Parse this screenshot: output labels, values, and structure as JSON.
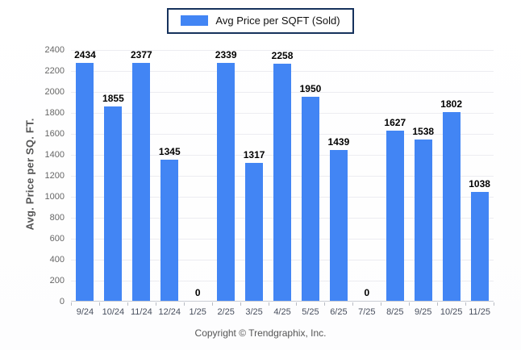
{
  "legend": {
    "label": "Avg Price per SQFT (Sold)"
  },
  "footer": {
    "text": "Copyright © Trendgraphix, Inc."
  },
  "chart_data": {
    "type": "bar",
    "title": "",
    "series_name": "Avg Price per SQFT (Sold)",
    "categories": [
      "9/24",
      "10/24",
      "11/24",
      "12/24",
      "1/25",
      "2/25",
      "3/25",
      "4/25",
      "5/25",
      "6/25",
      "7/25",
      "8/25",
      "9/25",
      "10/25",
      "11/25"
    ],
    "values": [
      2434,
      1855,
      2377,
      1345,
      0,
      2339,
      1317,
      2258,
      1950,
      1439,
      0,
      1627,
      1538,
      1802,
      1038
    ],
    "xlabel": "",
    "ylabel": "Avg. Price per SQ. FT.",
    "ylim": [
      0,
      2400
    ],
    "y_ticks": [
      0,
      200,
      400,
      600,
      800,
      1000,
      1200,
      1400,
      1600,
      1800,
      2000,
      2200,
      2400
    ],
    "grid": true,
    "legend_position": "top-center",
    "value_labels": true,
    "colors": {
      "bar": "#4285f4",
      "legend_border": "#16325c",
      "gridline": "#ececf1",
      "axis_line": "#c9ccd4",
      "y_tick_text": "#666666",
      "x_tick_text": "#474e5d",
      "value_label": "#000000",
      "ylabel_text": "#555555",
      "footer_text": "#555555"
    }
  }
}
